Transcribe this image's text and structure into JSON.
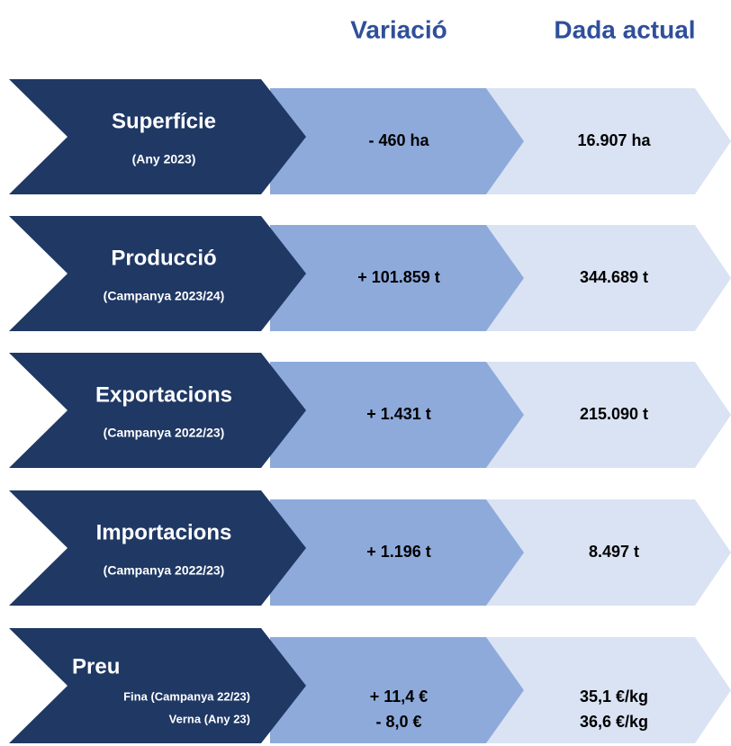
{
  "headers": {
    "variation": "Variació",
    "current": "Dada actual"
  },
  "rows": [
    {
      "label": "Superfície",
      "sublabels": [
        "(Any 2023)"
      ],
      "variations": [
        "- 460 ha"
      ],
      "current": [
        "16.907 ha"
      ]
    },
    {
      "label": "Producció",
      "sublabels": [
        "(Campanya 2023/24)"
      ],
      "variations": [
        "+ 101.859 t"
      ],
      "current": [
        "344.689 t"
      ]
    },
    {
      "label": "Exportacions",
      "sublabels": [
        "(Campanya 2022/23)"
      ],
      "variations": [
        "+ 1.431 t"
      ],
      "current": [
        "215.090 t"
      ]
    },
    {
      "label": "Importacions",
      "sublabels": [
        "(Campanya 2022/23)"
      ],
      "variations": [
        "+ 1.196 t"
      ],
      "current": [
        "8.497 t"
      ]
    },
    {
      "label": "Preu",
      "sublabels": [
        "Fina (Campanya 22/23)",
        "Verna (Any 23)"
      ],
      "variations": [
        "+ 11,4 €",
        "- 8,0 €"
      ],
      "current": [
        "35,1 €/kg",
        "36,6 €/kg"
      ]
    }
  ]
}
